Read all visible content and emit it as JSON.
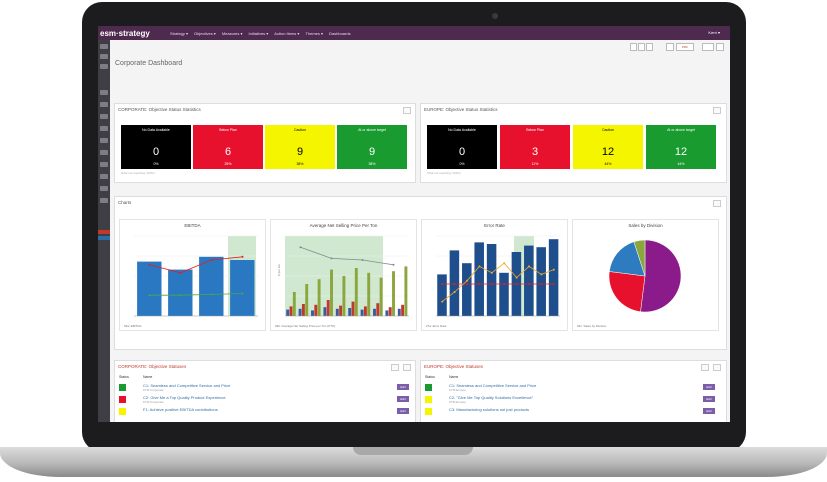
{
  "app": {
    "logo": "esm·strategy"
  },
  "nav": {
    "items": [
      "Strategy ▾",
      "Objectives ▾",
      "Measures ▾",
      "Initiatives ▾",
      "Action Items ▾",
      "Themes ▾",
      "Dashboards"
    ],
    "user": "Kerri ▾"
  },
  "toolbar": {
    "pdf_label": "PDF"
  },
  "page": {
    "title": "Corporate Dashboard"
  },
  "corporate_stats": {
    "title": "CORPORATE: Objective Status Statistics",
    "footer": "Total not reporting: 0(0%)",
    "cells": [
      {
        "label": "No Data Available",
        "value": "0",
        "pct": "0%",
        "bg": "#000000",
        "fg": "#ffffff"
      },
      {
        "label": "Below Plan",
        "value": "6",
        "pct": "25%",
        "bg": "#e8112d",
        "fg": "#ffffff"
      },
      {
        "label": "Caution",
        "value": "9",
        "pct": "38%",
        "bg": "#f5f500",
        "fg": "#000000"
      },
      {
        "label": "At or above target",
        "value": "9",
        "pct": "38%",
        "bg": "#1a9b2f",
        "fg": "#ffffff"
      }
    ]
  },
  "europe_stats": {
    "title": "EUROPE: Objective Status Statistics",
    "footer": "Total not reporting: 0(0%)",
    "cells": [
      {
        "label": "No Data Available",
        "value": "0",
        "pct": "0%",
        "bg": "#000000",
        "fg": "#ffffff"
      },
      {
        "label": "Below Plan",
        "value": "3",
        "pct": "11%",
        "bg": "#e8112d",
        "fg": "#ffffff"
      },
      {
        "label": "Caution",
        "value": "12",
        "pct": "44%",
        "bg": "#f5f500",
        "fg": "#000000"
      },
      {
        "label": "At or above target",
        "value": "12",
        "pct": "44%",
        "bg": "#1a9b2f",
        "fg": "#ffffff"
      }
    ]
  },
  "charts_panel": {
    "title": "Charts"
  },
  "chart_data": [
    {
      "type": "bar",
      "title": "EBITDA",
      "legend": "93a: EBITDA",
      "series": [
        {
          "values": [
            68,
            58,
            74,
            70
          ],
          "color": "#2b78c2"
        },
        {
          "values": [
            64,
            54,
            70,
            74
          ],
          "color": "#e02020",
          "kind": "line"
        },
        {
          "values": [
            26,
            26,
            27,
            28
          ],
          "color": "#4aa84a",
          "kind": "line"
        }
      ]
    },
    {
      "type": "bar",
      "title": "Average Net Selling Price Per Ton",
      "ylabel": "$ per ton",
      "legend": "93b: Average Net Selling Price per Ton (PTO)",
      "series": [
        {
          "values": [
            8,
            9,
            7,
            11,
            9,
            10,
            8,
            9,
            7,
            9
          ],
          "color": "#3a5ba0"
        },
        {
          "values": [
            12,
            15,
            14,
            20,
            13,
            18,
            12,
            16,
            11,
            14
          ],
          "color": "#c0392b"
        },
        {
          "values": [
            30,
            40,
            46,
            58,
            50,
            60,
            54,
            48,
            56,
            62
          ],
          "color": "#8aa63c"
        },
        {
          "values": [
            86,
            72,
            70,
            64
          ],
          "color": "#7f8c8d",
          "kind": "line"
        }
      ]
    },
    {
      "type": "bar",
      "title": "Error Rate",
      "legend": "27a: Error Rate",
      "series": [
        {
          "values": [
            52,
            82,
            66,
            92,
            90,
            54,
            80,
            88,
            86,
            96
          ],
          "color": "#1f4e8c"
        },
        {
          "values": [
            40,
            40,
            40,
            40,
            40,
            40,
            40,
            40,
            40,
            40
          ],
          "color": "#e02020",
          "kind": "line"
        },
        {
          "values": [
            18,
            30,
            44,
            62,
            54,
            66,
            48,
            62,
            52,
            58
          ],
          "color": "#f5a623",
          "kind": "line"
        }
      ]
    },
    {
      "type": "pie",
      "title": "Sales by Division",
      "legend": "93c: Sales by Division",
      "slices": [
        {
          "value": 52,
          "color": "#8b1a8b"
        },
        {
          "value": 25,
          "color": "#e8112d"
        },
        {
          "value": 18,
          "color": "#2e7bc0"
        },
        {
          "value": 5,
          "color": "#8aa63c"
        }
      ]
    }
  ],
  "corporate_objectives": {
    "title": "CORPORATE: Objective Statuses",
    "headers": [
      "Status",
      "Name"
    ],
    "edit_label": "Edit",
    "rows": [
      {
        "name": "C1: Seamless and Competitive Service and Price",
        "owner": "KTM Corporate",
        "badge_bg": "#1a9b2f"
      },
      {
        "name": "C2: Give Me a Top Quality Product Experience",
        "owner": "KTM Corporate",
        "badge_bg": "#e8112d"
      },
      {
        "name": "F1: Achieve positive EBITDA contributions",
        "owner": "",
        "badge_bg": "#f5f500"
      }
    ]
  },
  "europe_objectives": {
    "title": "EUROPE: Objective Statuses",
    "headers": [
      "Status",
      "Name"
    ],
    "edit_label": "Edit",
    "rows": [
      {
        "name": "C1: Seamless and Competitive Service and Price",
        "owner": "KTM Europe",
        "badge_bg": "#1a9b2f"
      },
      {
        "name": "C2: \"Give Me Top Quality Solutions Excellence\"",
        "owner": "KTM Europe",
        "badge_bg": "#f5f500"
      },
      {
        "name": "C3: Manufacturing solutions not just products",
        "owner": "",
        "badge_bg": "#f5f500"
      }
    ]
  }
}
